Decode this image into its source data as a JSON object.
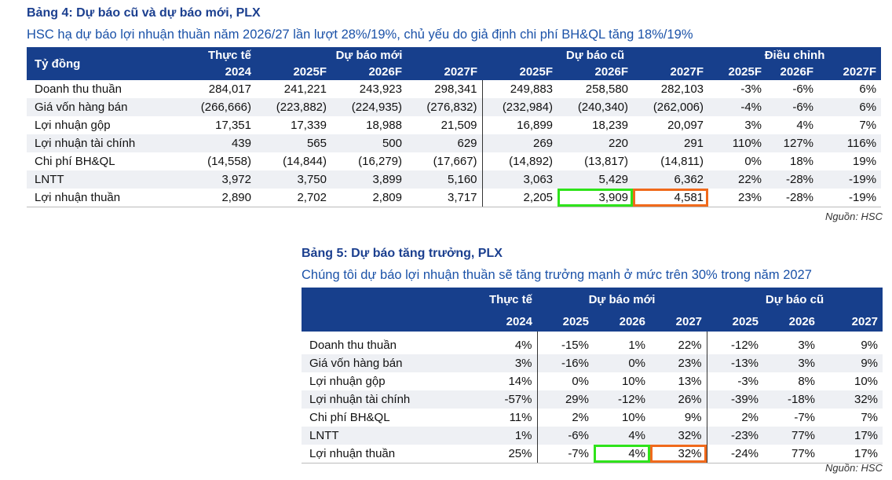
{
  "table4": {
    "title": "Bảng 4: Dự báo cũ và dự báo mới, PLX",
    "subtitle": "HSC hạ dự báo lợi nhuận thuần năm 2026/27 lần lượt 28%/19%, chủ yếu do giả định chi phí BH&QL tăng 18%/19%",
    "header": {
      "unit": "Tỷ đồng",
      "actual_line1": "Thực tế",
      "actual_line2": "2024",
      "group_new": "Dự báo mới",
      "group_old": "Dự báo cũ",
      "group_adj": "Điều chỉnh",
      "years": [
        "2025F",
        "2026F",
        "2027F",
        "2025F",
        "2026F",
        "2027F",
        "2025F",
        "2026F",
        "2027F"
      ]
    },
    "rows": [
      {
        "label": "Doanh thu thuần",
        "values": [
          "284,017",
          "241,221",
          "243,923",
          "298,341",
          "249,883",
          "258,580",
          "282,103",
          "-3%",
          "-6%",
          "6%"
        ]
      },
      {
        "label": "Giá vốn hàng bán",
        "values": [
          "(266,666)",
          "(223,882)",
          "(224,935)",
          "(276,832)",
          "(232,984)",
          "(240,340)",
          "(262,006)",
          "-4%",
          "-6%",
          "6%"
        ]
      },
      {
        "label": "Lợi nhuận gộp",
        "values": [
          "17,351",
          "17,339",
          "18,988",
          "21,509",
          "16,899",
          "18,239",
          "20,097",
          "3%",
          "4%",
          "7%"
        ]
      },
      {
        "label": "Lợi nhuận tài chính",
        "values": [
          "439",
          "565",
          "500",
          "629",
          "269",
          "220",
          "291",
          "110%",
          "127%",
          "116%"
        ]
      },
      {
        "label": "Chi phí BH&QL",
        "values": [
          "(14,558)",
          "(14,844)",
          "(16,279)",
          "(17,667)",
          "(14,892)",
          "(13,817)",
          "(14,811)",
          "0%",
          "18%",
          "19%"
        ]
      },
      {
        "label": "LNTT",
        "values": [
          "3,972",
          "3,750",
          "3,899",
          "5,160",
          "3,063",
          "5,429",
          "6,362",
          "22%",
          "-28%",
          "-19%"
        ]
      },
      {
        "label": "Lợi nhuận thuần",
        "values": [
          "2,890",
          "2,702",
          "2,809",
          "3,717",
          "2,205",
          "3,909",
          "4,581",
          "23%",
          "-28%",
          "-19%"
        ]
      }
    ],
    "source": "Nguồn: HSC"
  },
  "table5": {
    "title": "Bảng 5: Dự báo tăng trưởng, PLX",
    "subtitle": "Chúng tôi dự báo lợi nhuận thuần sẽ tăng trưởng mạnh ở mức trên 30% trong năm 2027",
    "header": {
      "actual_line1": "Thực tế",
      "actual_line2": "2024",
      "group_new": "Dự báo mới",
      "group_old": "Dự báo cũ",
      "years": [
        "2025",
        "2026",
        "2027",
        "2025",
        "2026",
        "2027"
      ]
    },
    "rows": [
      {
        "label": "Doanh thu thuần",
        "values": [
          "4%",
          "-15%",
          "1%",
          "22%",
          "-12%",
          "3%",
          "9%"
        ]
      },
      {
        "label": "Giá vốn hàng bán",
        "values": [
          "3%",
          "-16%",
          "0%",
          "23%",
          "-13%",
          "3%",
          "9%"
        ]
      },
      {
        "label": "Lợi nhuận gộp",
        "values": [
          "14%",
          "0%",
          "10%",
          "13%",
          "-3%",
          "8%",
          "10%"
        ]
      },
      {
        "label": "Lợi nhuận tài chính",
        "values": [
          "-57%",
          "29%",
          "-12%",
          "26%",
          "-39%",
          "-18%",
          "32%"
        ]
      },
      {
        "label": "Chi phí BH&QL",
        "values": [
          "11%",
          "2%",
          "10%",
          "9%",
          "2%",
          "-7%",
          "7%"
        ]
      },
      {
        "label": "LNTT",
        "values": [
          "1%",
          "-6%",
          "4%",
          "32%",
          "-23%",
          "77%",
          "17%"
        ]
      },
      {
        "label": "Lợi nhuận thuần",
        "values": [
          "25%",
          "-7%",
          "4%",
          "32%",
          "-24%",
          "77%",
          "17%"
        ]
      }
    ],
    "source": "Nguồn: HSC"
  },
  "colors": {
    "header_bg": "#173f8c",
    "title": "#1b3f8f",
    "highlight_green": "#2fe31b",
    "highlight_orange": "#f06a1c"
  }
}
